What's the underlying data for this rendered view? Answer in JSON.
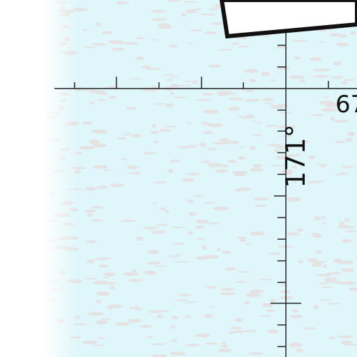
{
  "map": {
    "bearing_label": "171°",
    "longitude_label_partial": "67",
    "colors": {
      "water": "#dff6fa",
      "water_texture": "#e4e2e2",
      "grid_line": "#222222",
      "label": "#111111",
      "land_fade": "#ffffff"
    }
  }
}
